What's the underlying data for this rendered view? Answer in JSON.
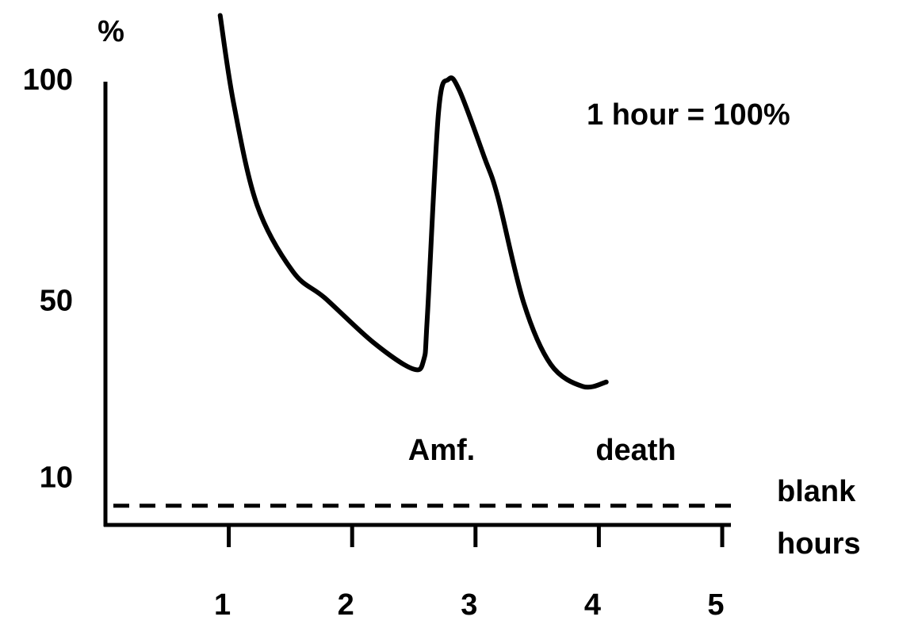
{
  "chart_data": {
    "type": "line",
    "y_label": "%",
    "x_label": "hours",
    "annotations": [
      "1 hour = 100%",
      "Amf.",
      "death"
    ],
    "x": [
      0.93,
      1.04,
      1.23,
      1.52,
      1.78,
      2.17,
      2.49,
      2.58,
      2.61,
      2.7,
      2.78,
      2.87,
      3.07,
      3.18,
      3.39,
      3.61,
      3.87,
      4.06
    ],
    "series": [
      {
        "color": "#000000",
        "values": [
          115,
          95,
          72,
          57,
          51,
          41,
          35,
          37,
          47,
          93,
          100.5,
          98,
          83,
          74,
          50,
          36,
          31,
          32
        ]
      }
    ],
    "xlim": [
      0,
      5
    ],
    "xticks": [
      1,
      2,
      3,
      4,
      5
    ],
    "ylim": [
      0,
      100
    ],
    "yticks": [
      10,
      50,
      100
    ],
    "reference_line": {
      "label": "blank",
      "value": 4,
      "style": "dashed"
    }
  }
}
